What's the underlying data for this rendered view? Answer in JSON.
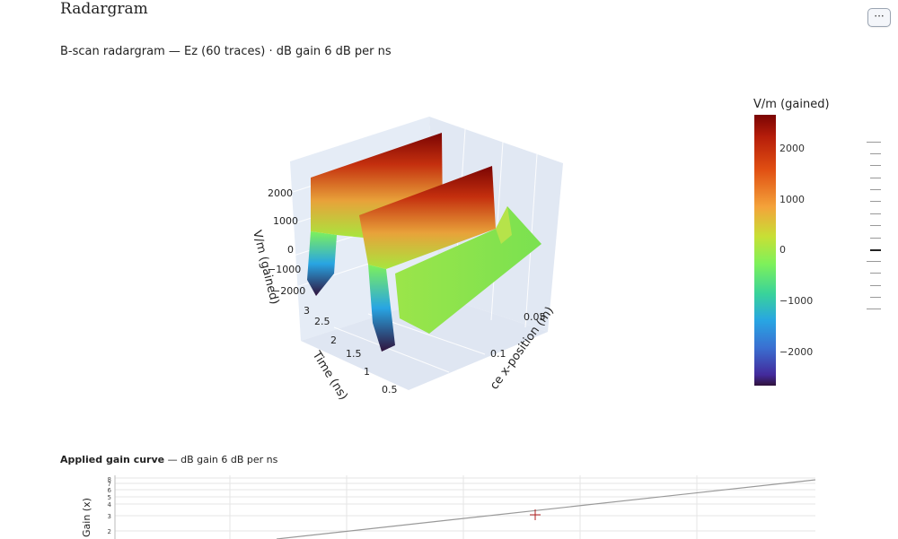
{
  "page": {
    "title": "Radargram",
    "menu_label": "···",
    "subtitle": "B-scan radargram — Ez (60 traces)  ·  dB gain 6 dB per ns"
  },
  "plot3d": {
    "z_axis_label": "V/m (gained)",
    "z_ticks": [
      "2000",
      "1000",
      "0",
      "−1000",
      "−2000"
    ],
    "time_axis_label": "Time (ns)",
    "time_ticks": [
      "3",
      "2.5",
      "2",
      "1.5",
      "1",
      "0.5"
    ],
    "x_axis_label": "ce x-position (m)",
    "x_ticks": [
      "0.05",
      "0.1"
    ]
  },
  "colorbar": {
    "title": "V/m (gained)",
    "ticks": [
      "2000",
      "1000",
      "0",
      "−1000",
      "−2000"
    ]
  },
  "gain": {
    "heading_bold": "Applied gain curve",
    "heading_rest": " — dB gain 6 dB per ns",
    "y_label": "Gain (x)",
    "y_ticks": [
      "8",
      "7",
      "6",
      "5",
      "4",
      "3",
      "2"
    ]
  },
  "colors": {
    "accent_plot_bg": "#e5ecf6",
    "surface_high": "#7a0403",
    "surface_mid": "#7ef15a",
    "surface_low": "#30123b"
  }
}
